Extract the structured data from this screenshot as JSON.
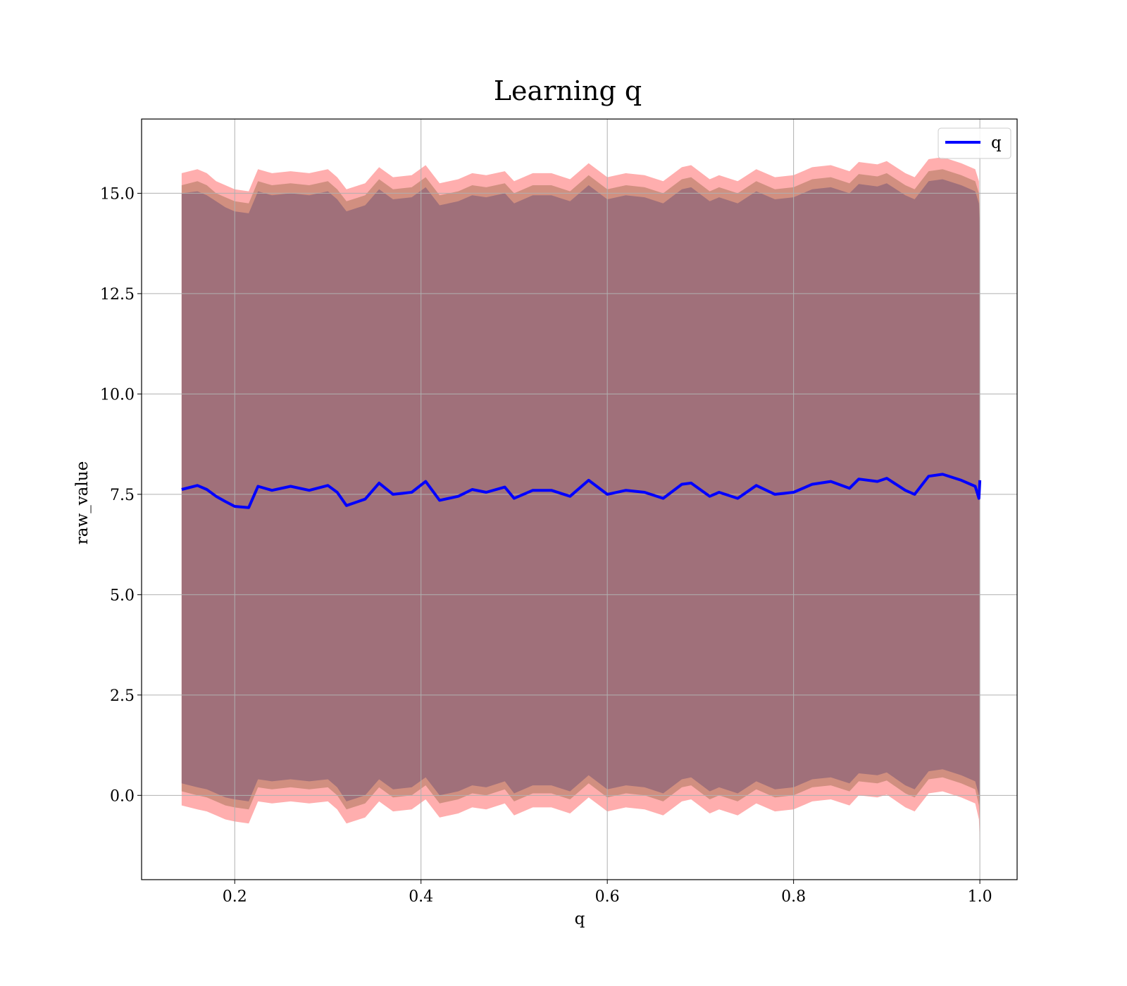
{
  "chart_data": {
    "type": "line",
    "title": "Learning q",
    "xlabel": "q",
    "ylabel": "raw_value",
    "xlim": [
      0.1,
      1.04
    ],
    "ylim": [
      -2.1,
      16.85
    ],
    "xticks": [
      0.2,
      0.4,
      0.6,
      0.8,
      1.0
    ],
    "xtick_labels": [
      "0.2",
      "0.4",
      "0.6",
      "0.8",
      "1.0"
    ],
    "yticks": [
      0.0,
      2.5,
      5.0,
      7.5,
      10.0,
      12.5,
      15.0
    ],
    "ytick_labels": [
      "0.0",
      "2.5",
      "5.0",
      "7.5",
      "10.0",
      "12.5",
      "15.0"
    ],
    "grid": true,
    "legend": {
      "position": "top-right",
      "entries": [
        "q"
      ]
    },
    "colors": {
      "line": "#0000ff",
      "outer_band": "#ff9a9a",
      "middle_band": "#c98a78",
      "inner_band": "#a0707a",
      "grid": "#b0b0b0"
    },
    "x": [
      0.143,
      0.16,
      0.17,
      0.18,
      0.19,
      0.2,
      0.215,
      0.225,
      0.24,
      0.26,
      0.28,
      0.3,
      0.31,
      0.32,
      0.34,
      0.355,
      0.37,
      0.39,
      0.405,
      0.42,
      0.44,
      0.455,
      0.47,
      0.49,
      0.5,
      0.52,
      0.54,
      0.56,
      0.58,
      0.6,
      0.62,
      0.64,
      0.66,
      0.68,
      0.69,
      0.71,
      0.72,
      0.74,
      0.76,
      0.78,
      0.8,
      0.82,
      0.84,
      0.86,
      0.87,
      0.89,
      0.9,
      0.92,
      0.93,
      0.945,
      0.96,
      0.98,
      0.995,
      0.999,
      1.0
    ],
    "series": [
      {
        "name": "q",
        "values": [
          7.62,
          7.72,
          7.62,
          7.45,
          7.32,
          7.2,
          7.17,
          7.7,
          7.6,
          7.7,
          7.6,
          7.72,
          7.55,
          7.22,
          7.38,
          7.78,
          7.5,
          7.55,
          7.82,
          7.35,
          7.45,
          7.62,
          7.55,
          7.68,
          7.4,
          7.6,
          7.6,
          7.45,
          7.85,
          7.5,
          7.6,
          7.55,
          7.4,
          7.75,
          7.78,
          7.45,
          7.55,
          7.4,
          7.72,
          7.5,
          7.55,
          7.75,
          7.82,
          7.65,
          7.88,
          7.82,
          7.9,
          7.6,
          7.5,
          7.95,
          8.0,
          7.85,
          7.7,
          7.4,
          7.85
        ],
        "bands": [
          {
            "lower": [
              -0.25,
              -0.35,
              -0.4,
              -0.5,
              -0.6,
              -0.65,
              -0.7,
              -0.15,
              -0.2,
              -0.15,
              -0.2,
              -0.15,
              -0.35,
              -0.7,
              -0.55,
              -0.15,
              -0.4,
              -0.35,
              -0.1,
              -0.55,
              -0.45,
              -0.3,
              -0.35,
              -0.2,
              -0.5,
              -0.3,
              -0.3,
              -0.45,
              -0.05,
              -0.4,
              -0.3,
              -0.35,
              -0.5,
              -0.15,
              -0.1,
              -0.45,
              -0.35,
              -0.5,
              -0.2,
              -0.4,
              -0.35,
              -0.15,
              -0.1,
              -0.25,
              0.0,
              -0.05,
              0.02,
              -0.3,
              -0.4,
              0.05,
              0.1,
              -0.05,
              -0.2,
              -0.6,
              -1.2
            ],
            "upper": [
              15.5,
              15.6,
              15.5,
              15.3,
              15.2,
              15.1,
              15.05,
              15.6,
              15.5,
              15.55,
              15.5,
              15.6,
              15.4,
              15.1,
              15.25,
              15.65,
              15.4,
              15.45,
              15.7,
              15.25,
              15.35,
              15.5,
              15.45,
              15.55,
              15.3,
              15.5,
              15.5,
              15.35,
              15.75,
              15.4,
              15.5,
              15.45,
              15.3,
              15.65,
              15.7,
              15.35,
              15.45,
              15.3,
              15.6,
              15.4,
              15.45,
              15.65,
              15.7,
              15.55,
              15.78,
              15.72,
              15.8,
              15.5,
              15.4,
              15.85,
              15.9,
              15.75,
              15.6,
              15.3,
              14.0
            ]
          },
          {
            "lower": [
              0.1,
              0.0,
              -0.05,
              -0.15,
              -0.25,
              -0.3,
              -0.35,
              0.2,
              0.15,
              0.2,
              0.15,
              0.2,
              0.0,
              -0.35,
              -0.2,
              0.2,
              -0.05,
              0.0,
              0.25,
              -0.2,
              -0.1,
              0.05,
              0.0,
              0.15,
              -0.15,
              0.05,
              0.05,
              -0.1,
              0.3,
              -0.05,
              0.05,
              0.0,
              -0.15,
              0.2,
              0.25,
              -0.1,
              0.0,
              -0.15,
              0.15,
              -0.05,
              0.0,
              0.2,
              0.25,
              0.1,
              0.35,
              0.3,
              0.37,
              0.05,
              -0.05,
              0.4,
              0.45,
              0.3,
              0.15,
              -0.25,
              -0.8
            ],
            "upper": [
              15.2,
              15.3,
              15.2,
              15.0,
              14.9,
              14.8,
              14.75,
              15.3,
              15.2,
              15.25,
              15.2,
              15.3,
              15.1,
              14.8,
              14.95,
              15.35,
              15.1,
              15.15,
              15.4,
              14.95,
              15.05,
              15.2,
              15.15,
              15.25,
              15.0,
              15.2,
              15.2,
              15.05,
              15.45,
              15.1,
              15.2,
              15.15,
              15.0,
              15.35,
              15.4,
              15.05,
              15.15,
              15.0,
              15.3,
              15.1,
              15.15,
              15.35,
              15.4,
              15.25,
              15.48,
              15.42,
              15.5,
              15.2,
              15.1,
              15.55,
              15.6,
              15.45,
              15.3,
              15.0,
              14.3
            ]
          },
          {
            "lower": [
              0.3,
              0.2,
              0.15,
              0.05,
              -0.05,
              -0.1,
              -0.15,
              0.4,
              0.35,
              0.4,
              0.35,
              0.4,
              0.2,
              -0.15,
              0.0,
              0.4,
              0.15,
              0.2,
              0.45,
              0.0,
              0.1,
              0.25,
              0.2,
              0.35,
              0.05,
              0.25,
              0.25,
              0.1,
              0.5,
              0.15,
              0.25,
              0.2,
              0.05,
              0.4,
              0.45,
              0.1,
              0.2,
              0.05,
              0.35,
              0.15,
              0.2,
              0.4,
              0.45,
              0.3,
              0.55,
              0.5,
              0.57,
              0.25,
              0.15,
              0.6,
              0.65,
              0.5,
              0.35,
              0.0,
              -0.4
            ],
            "upper": [
              15.0,
              15.05,
              14.95,
              14.8,
              14.65,
              14.55,
              14.5,
              15.05,
              14.95,
              15.0,
              14.95,
              15.05,
              14.85,
              14.55,
              14.7,
              15.1,
              14.85,
              14.9,
              15.15,
              14.7,
              14.8,
              14.95,
              14.9,
              15.0,
              14.75,
              14.95,
              14.95,
              14.8,
              15.2,
              14.85,
              14.95,
              14.9,
              14.75,
              15.1,
              15.15,
              14.8,
              14.9,
              14.75,
              15.05,
              14.85,
              14.9,
              15.1,
              15.15,
              15.0,
              15.23,
              15.17,
              15.25,
              14.95,
              14.85,
              15.3,
              15.35,
              15.2,
              15.05,
              14.75,
              14.0
            ]
          }
        ]
      }
    ]
  }
}
